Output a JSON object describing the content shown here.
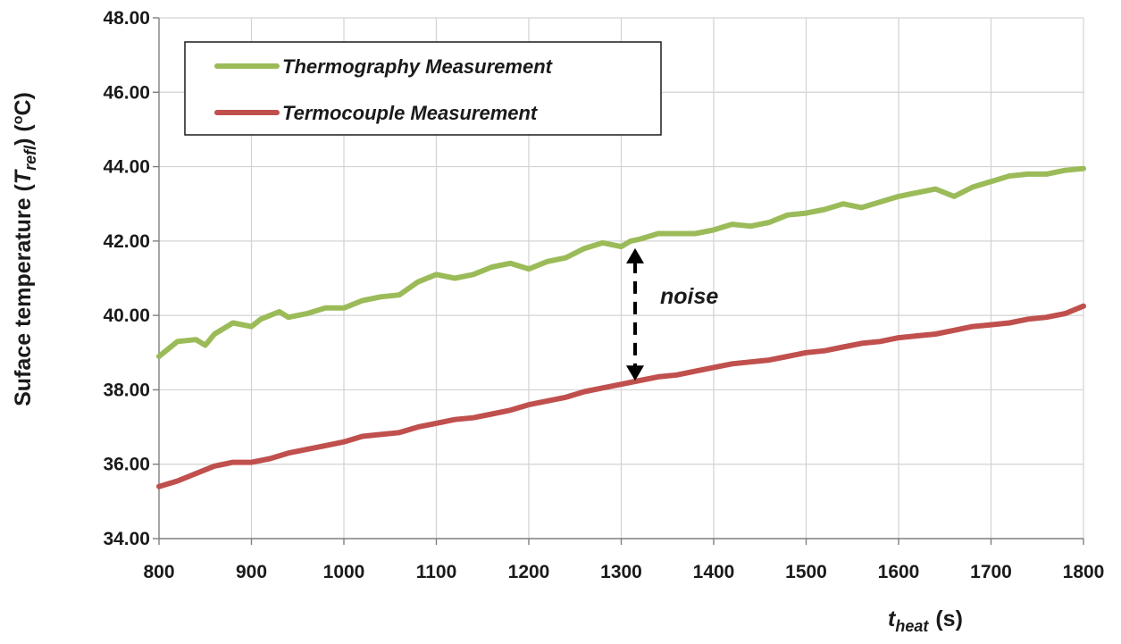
{
  "chart_data": {
    "type": "line",
    "title": "",
    "ylabel_main": "Suface temperature (",
    "ylabel_symbol": "T",
    "ylabel_subscript": "refl",
    "ylabel_tail_open": ") (",
    "ylabel_superscript": "o",
    "ylabel_unit": "C)",
    "xlabel_symbol": "t",
    "xlabel_subscript": "heat",
    "xlabel_unit": "(s)",
    "xlim": [
      800,
      1800
    ],
    "ylim": [
      34,
      48
    ],
    "x_ticks": [
      "800",
      "900",
      "1000",
      "1100",
      "1200",
      "1300",
      "1400",
      "1500",
      "1600",
      "1700",
      "1800"
    ],
    "y_ticks": [
      "34.00",
      "36.00",
      "38.00",
      "40.00",
      "42.00",
      "44.00",
      "46.00",
      "48.00"
    ],
    "grid": true,
    "legend_position": "top-left",
    "series": [
      {
        "name": "Thermography Measurement",
        "color": "#9bbb59",
        "x": [
          800,
          820,
          840,
          850,
          860,
          880,
          900,
          910,
          930,
          940,
          960,
          980,
          1000,
          1020,
          1040,
          1060,
          1080,
          1100,
          1120,
          1140,
          1160,
          1180,
          1200,
          1220,
          1240,
          1260,
          1280,
          1300,
          1310,
          1320,
          1340,
          1360,
          1380,
          1400,
          1420,
          1440,
          1460,
          1480,
          1500,
          1520,
          1540,
          1560,
          1580,
          1600,
          1620,
          1640,
          1660,
          1680,
          1700,
          1720,
          1740,
          1760,
          1780,
          1800
        ],
        "values": [
          38.9,
          39.3,
          39.35,
          39.2,
          39.5,
          39.8,
          39.7,
          39.9,
          40.1,
          39.95,
          40.05,
          40.2,
          40.2,
          40.4,
          40.5,
          40.55,
          40.9,
          41.1,
          41.0,
          41.1,
          41.3,
          41.4,
          41.25,
          41.45,
          41.55,
          41.8,
          41.95,
          41.85,
          42.0,
          42.05,
          42.2,
          42.2,
          42.2,
          42.3,
          42.45,
          42.4,
          42.5,
          42.7,
          42.75,
          42.85,
          43.0,
          42.9,
          43.05,
          43.2,
          43.3,
          43.4,
          43.2,
          43.45,
          43.6,
          43.75,
          43.8,
          43.8,
          43.9,
          43.95
        ]
      },
      {
        "name": "Termocouple Measurement",
        "color": "#c0504d",
        "x": [
          800,
          820,
          840,
          860,
          880,
          900,
          920,
          940,
          960,
          980,
          1000,
          1020,
          1040,
          1060,
          1080,
          1100,
          1120,
          1140,
          1160,
          1180,
          1200,
          1220,
          1240,
          1260,
          1280,
          1300,
          1320,
          1340,
          1360,
          1380,
          1400,
          1420,
          1440,
          1460,
          1480,
          1500,
          1520,
          1540,
          1560,
          1580,
          1600,
          1620,
          1640,
          1660,
          1680,
          1700,
          1720,
          1740,
          1760,
          1780,
          1800
        ],
        "values": [
          35.4,
          35.55,
          35.75,
          35.95,
          36.05,
          36.05,
          36.15,
          36.3,
          36.4,
          36.5,
          36.6,
          36.75,
          36.8,
          36.85,
          37.0,
          37.1,
          37.2,
          37.25,
          37.35,
          37.45,
          37.6,
          37.7,
          37.8,
          37.95,
          38.05,
          38.15,
          38.25,
          38.35,
          38.4,
          38.5,
          38.6,
          38.7,
          38.75,
          38.8,
          38.9,
          39.0,
          39.05,
          39.15,
          39.25,
          39.3,
          39.4,
          39.45,
          39.5,
          39.6,
          39.7,
          39.75,
          39.8,
          39.9,
          39.95,
          40.05,
          40.25
        ]
      }
    ],
    "annotation": {
      "text": "noise",
      "x": 1315,
      "y_from": 42.0,
      "y_to": 38.1
    }
  }
}
